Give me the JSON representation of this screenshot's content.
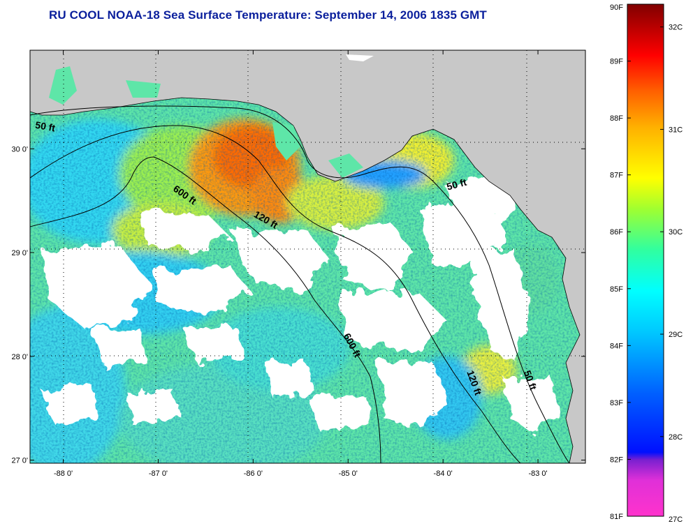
{
  "title": "RU COOL  NOAA-18  Sea Surface Temperature:  September 14, 2006 1835 GMT",
  "map": {
    "lon_range": [
      -88.35,
      -82.5
    ],
    "lat_range": [
      26.97,
      30.95
    ],
    "lon_ticks": [
      {
        "value": -88,
        "label": "-88 0'"
      },
      {
        "value": -87,
        "label": "-87 0'"
      },
      {
        "value": -86,
        "label": "-86 0'"
      },
      {
        "value": -85,
        "label": "-85 0'"
      },
      {
        "value": -84,
        "label": "-84 0'"
      },
      {
        "value": -83,
        "label": "-83 0'"
      }
    ],
    "lat_ticks": [
      {
        "value": 30,
        "label": "30 0'"
      },
      {
        "value": 29,
        "label": "29 0'"
      },
      {
        "value": 28,
        "label": "28 0'"
      },
      {
        "value": 27,
        "label": "27 0'"
      }
    ],
    "grid": "dotted",
    "land_color": "#c8c8c8",
    "cloud_color": "#ffffff",
    "contour_labels": [
      {
        "text": "50 ft",
        "lon": -88.3,
        "lat": 30.2,
        "angle": 10
      },
      {
        "text": "600 ft",
        "lon": -86.85,
        "lat": 29.6,
        "angle": 35
      },
      {
        "text": "120 ft",
        "lon": -86.0,
        "lat": 29.35,
        "angle": 30
      },
      {
        "text": "50 ft",
        "lon": -83.95,
        "lat": 29.6,
        "angle": -15
      },
      {
        "text": "600 ft",
        "lon": -85.05,
        "lat": 28.2,
        "angle": 62
      },
      {
        "text": "120 ft",
        "lon": -83.75,
        "lat": 27.85,
        "angle": 70
      },
      {
        "text": "50 ft",
        "lon": -83.15,
        "lat": 27.85,
        "angle": 70
      }
    ]
  },
  "colorbar": {
    "fahrenheit_labels": [
      {
        "label": "90F",
        "value": 90
      },
      {
        "label": "89F",
        "value": 89
      },
      {
        "label": "88F",
        "value": 88
      },
      {
        "label": "87F",
        "value": 87
      },
      {
        "label": "86F",
        "value": 86
      },
      {
        "label": "85F",
        "value": 85
      },
      {
        "label": "84F",
        "value": 84
      },
      {
        "label": "83F",
        "value": 83
      },
      {
        "label": "82F",
        "value": 82
      },
      {
        "label": "81F",
        "value": 81
      }
    ],
    "celsius_labels": [
      {
        "label": "32C",
        "value": 32
      },
      {
        "label": "31C",
        "value": 31
      },
      {
        "label": "30C",
        "value": 30
      },
      {
        "label": "29C",
        "value": 29
      },
      {
        "label": "28C",
        "value": 28
      },
      {
        "label": "27C",
        "value": 27
      }
    ],
    "colors": [
      "#ff33cc",
      "#a020d0",
      "#0010ff",
      "#00a0ff",
      "#00ffff",
      "#40ff80",
      "#c8ff20",
      "#ffff00",
      "#ff8000",
      "#ff0000",
      "#800000"
    ]
  }
}
